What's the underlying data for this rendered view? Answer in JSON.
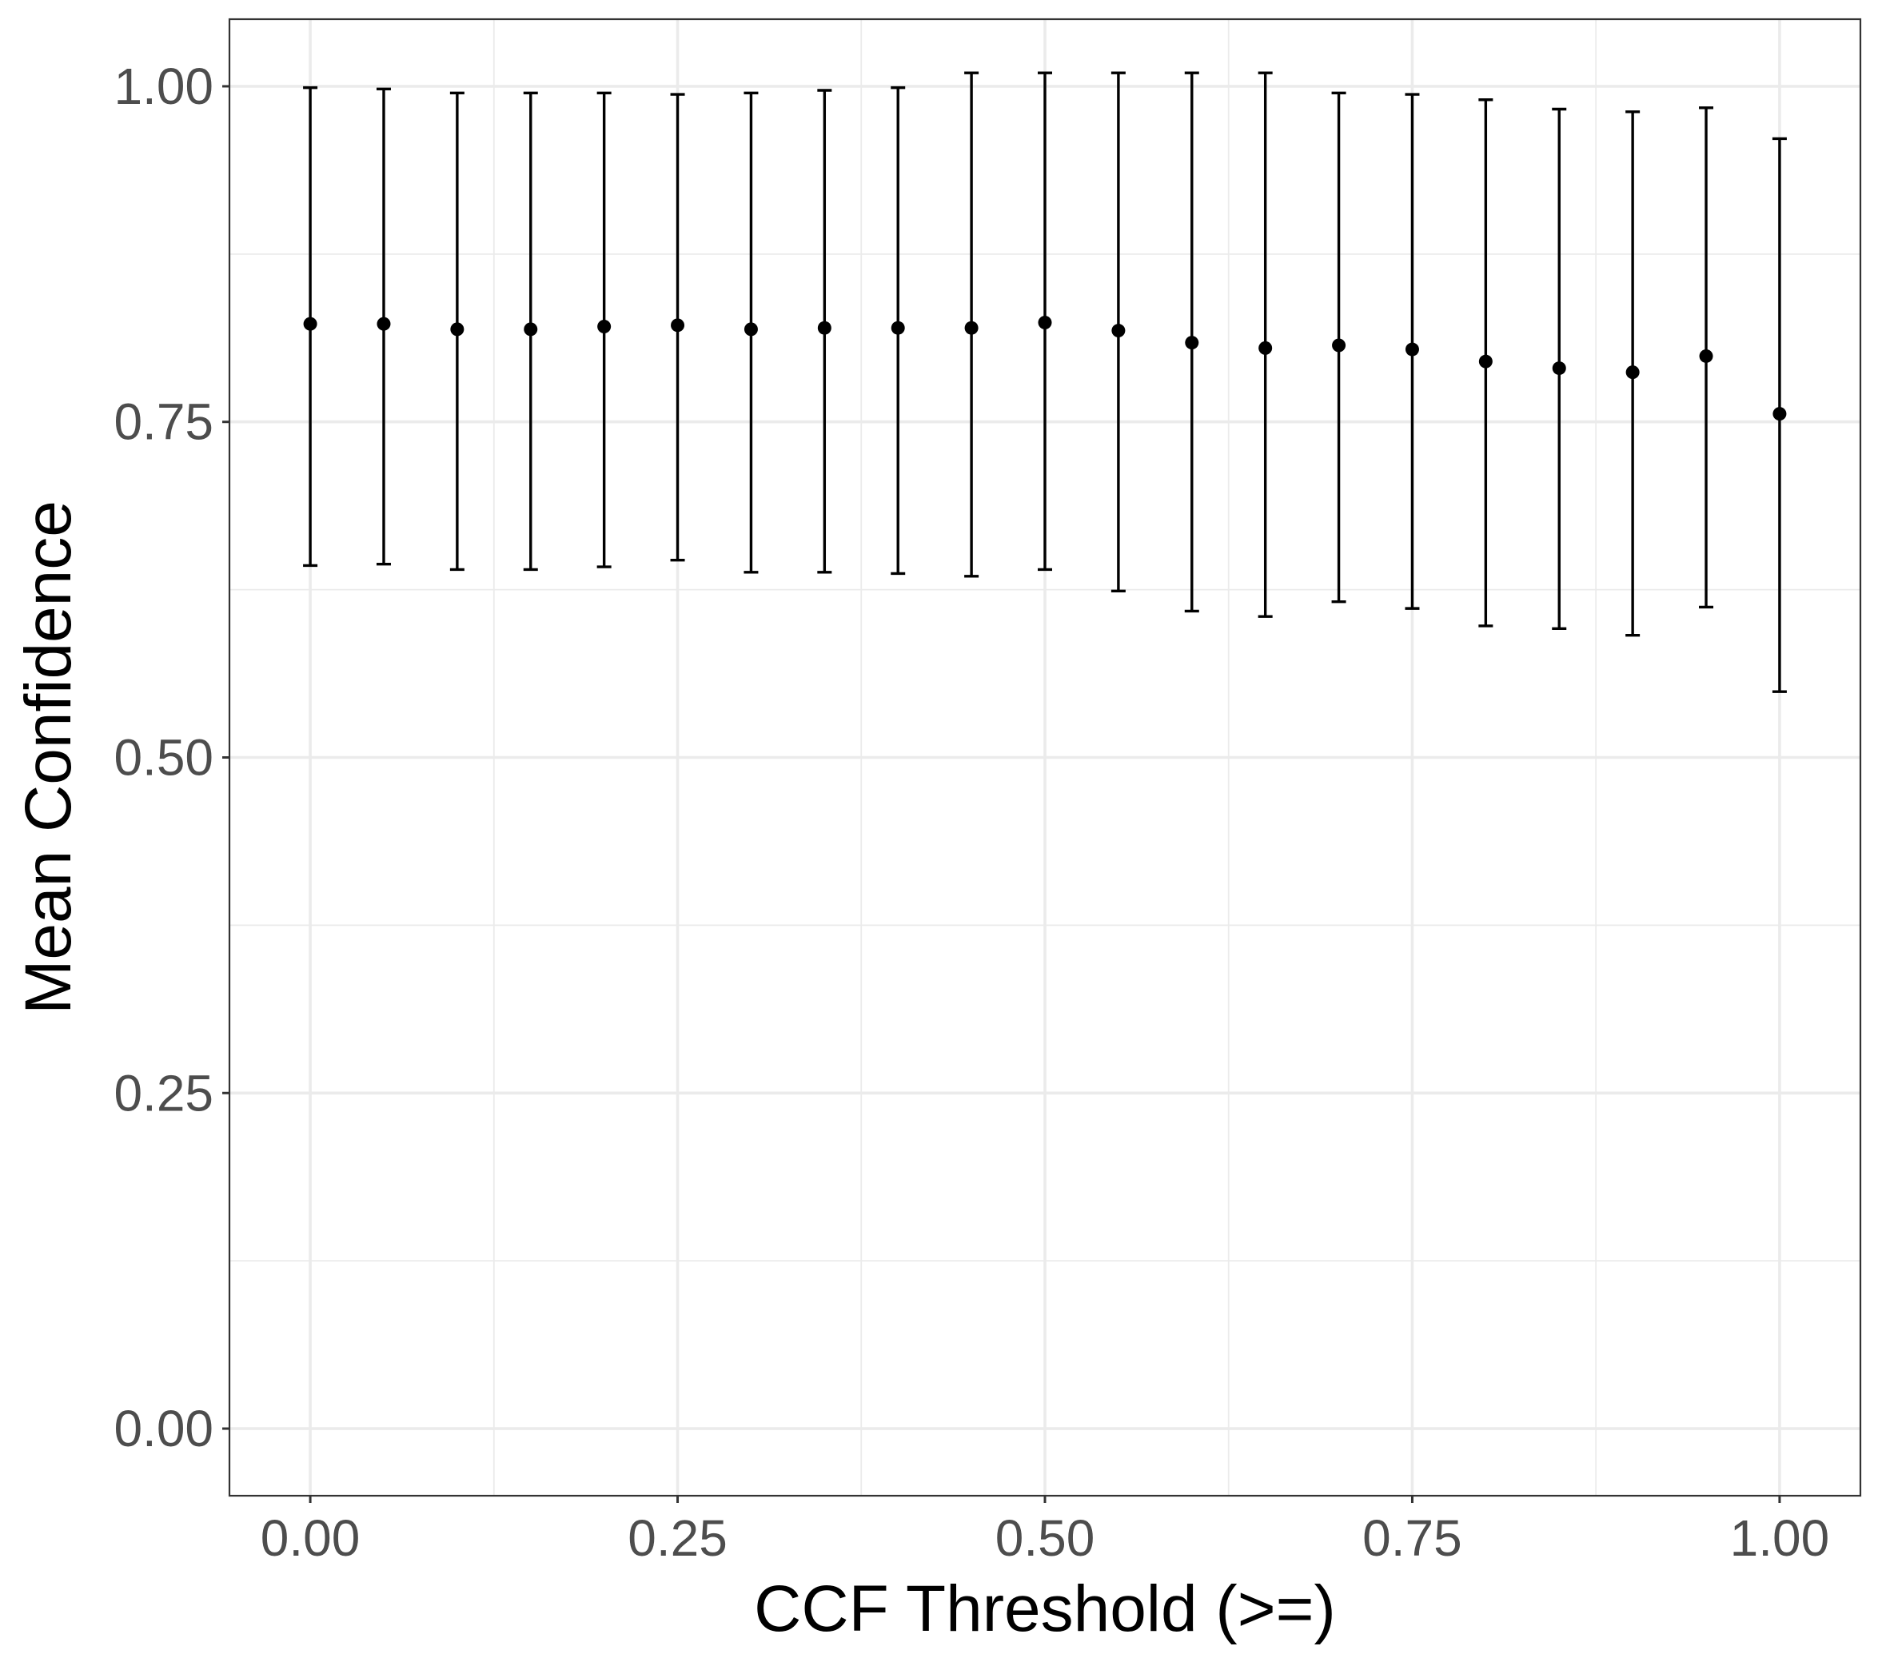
{
  "chart_data": {
    "type": "scatter",
    "title": "",
    "xlabel": "CCF Threshold (>=)",
    "ylabel": "Mean Confidence",
    "xlim": [
      -0.055,
      1.055
    ],
    "ylim": [
      -0.05,
      1.05
    ],
    "x_ticks": [
      0.0,
      0.25,
      0.5,
      0.75,
      1.0
    ],
    "x_tick_labels": [
      "0.00",
      "0.25",
      "0.50",
      "0.75",
      "1.00"
    ],
    "y_ticks": [
      0.0,
      0.25,
      0.5,
      0.75,
      1.0
    ],
    "y_tick_labels": [
      "0.00",
      "0.25",
      "0.50",
      "0.75",
      "1.00"
    ],
    "grid": true,
    "legend": "none",
    "colors": {
      "points": "#000000",
      "grid": "#ebebeb",
      "panel_border": "#333333",
      "tick_text": "#4d4d4d"
    },
    "points": [
      {
        "x": 0.0,
        "y": 0.823,
        "ymin": 0.643,
        "ymax": 0.999
      },
      {
        "x": 0.05,
        "y": 0.823,
        "ymin": 0.644,
        "ymax": 0.998
      },
      {
        "x": 0.1,
        "y": 0.819,
        "ymin": 0.64,
        "ymax": 0.995
      },
      {
        "x": 0.15,
        "y": 0.819,
        "ymin": 0.64,
        "ymax": 0.995
      },
      {
        "x": 0.2,
        "y": 0.821,
        "ymin": 0.642,
        "ymax": 0.995
      },
      {
        "x": 0.25,
        "y": 0.822,
        "ymin": 0.647,
        "ymax": 0.994
      },
      {
        "x": 0.3,
        "y": 0.819,
        "ymin": 0.638,
        "ymax": 0.995
      },
      {
        "x": 0.35,
        "y": 0.82,
        "ymin": 0.638,
        "ymax": 0.997
      },
      {
        "x": 0.4,
        "y": 0.82,
        "ymin": 0.637,
        "ymax": 0.999
      },
      {
        "x": 0.45,
        "y": 0.82,
        "ymin": 0.635,
        "ymax": 1.01
      },
      {
        "x": 0.5,
        "y": 0.824,
        "ymin": 0.64,
        "ymax": 1.01
      },
      {
        "x": 0.55,
        "y": 0.818,
        "ymin": 0.624,
        "ymax": 1.01
      },
      {
        "x": 0.6,
        "y": 0.809,
        "ymin": 0.609,
        "ymax": 1.01
      },
      {
        "x": 0.65,
        "y": 0.805,
        "ymin": 0.605,
        "ymax": 1.01
      },
      {
        "x": 0.7,
        "y": 0.807,
        "ymin": 0.616,
        "ymax": 0.995
      },
      {
        "x": 0.75,
        "y": 0.804,
        "ymin": 0.611,
        "ymax": 0.994
      },
      {
        "x": 0.8,
        "y": 0.795,
        "ymin": 0.598,
        "ymax": 0.99
      },
      {
        "x": 0.85,
        "y": 0.79,
        "ymin": 0.596,
        "ymax": 0.983
      },
      {
        "x": 0.9,
        "y": 0.787,
        "ymin": 0.591,
        "ymax": 0.981
      },
      {
        "x": 0.95,
        "y": 0.799,
        "ymin": 0.612,
        "ymax": 0.984
      },
      {
        "x": 1.0,
        "y": 0.756,
        "ymin": 0.549,
        "ymax": 0.961
      }
    ]
  }
}
